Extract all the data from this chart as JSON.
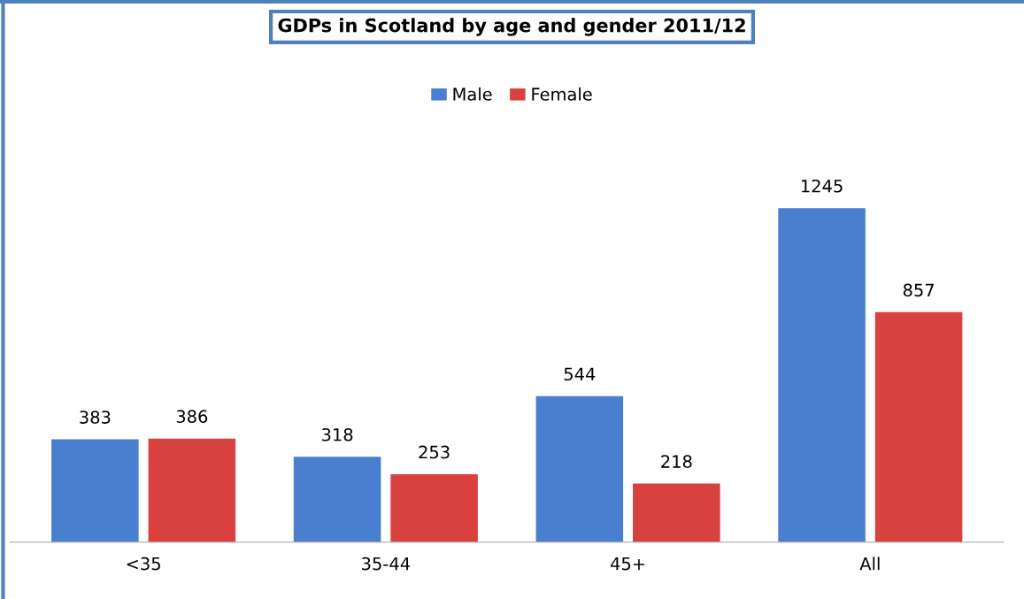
{
  "chart_data": {
    "type": "bar",
    "title": "GDPs in Scotland by age and gender 2011/12",
    "categories": [
      "<35",
      "35-44",
      "45+",
      "All"
    ],
    "series": [
      {
        "name": "Male",
        "color": "#4a7fd0",
        "values": [
          383,
          318,
          544,
          1245
        ]
      },
      {
        "name": "Female",
        "color": "#d9413f",
        "values": [
          386,
          253,
          218,
          857
        ]
      }
    ],
    "data_labels": true,
    "legend": "top",
    "grid": false
  }
}
